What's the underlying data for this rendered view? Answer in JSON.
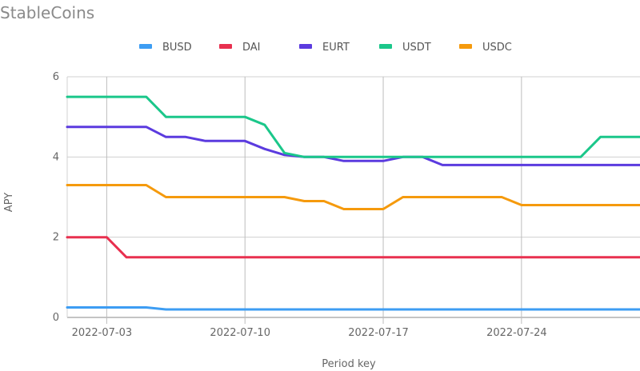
{
  "chart_data": {
    "type": "line",
    "title": "StableCoins",
    "xlabel": "Period key",
    "ylabel": "APY",
    "ylim": [
      0,
      6
    ],
    "yticks": [
      0,
      2,
      4,
      6
    ],
    "xlim": [
      0,
      29
    ],
    "xticks": [
      {
        "label": "2022-07-03",
        "index": 2
      },
      {
        "label": "2022-07-10",
        "index": 9
      },
      {
        "label": "2022-07-17",
        "index": 16
      },
      {
        "label": "2022-07-24",
        "index": 23
      }
    ],
    "grid": true,
    "legend_position": "top",
    "series": [
      {
        "name": "BUSD",
        "color": "#3d9df3",
        "values": [
          0.25,
          0.25,
          0.25,
          0.25,
          0.25,
          0.2,
          0.2,
          0.2,
          0.2,
          0.2,
          0.2,
          0.2,
          0.2,
          0.2,
          0.2,
          0.2,
          0.2,
          0.2,
          0.2,
          0.2,
          0.2,
          0.2,
          0.2,
          0.2,
          0.2,
          0.2,
          0.2,
          0.2,
          0.2,
          0.2
        ]
      },
      {
        "name": "DAI",
        "color": "#e8304f",
        "values": [
          2.0,
          2.0,
          2.0,
          1.5,
          1.5,
          1.5,
          1.5,
          1.5,
          1.5,
          1.5,
          1.5,
          1.5,
          1.5,
          1.5,
          1.5,
          1.5,
          1.5,
          1.5,
          1.5,
          1.5,
          1.5,
          1.5,
          1.5,
          1.5,
          1.5,
          1.5,
          1.5,
          1.5,
          1.5,
          1.5
        ]
      },
      {
        "name": "EURT",
        "color": "#5b3bdf",
        "values": [
          4.75,
          4.75,
          4.75,
          4.75,
          4.75,
          4.5,
          4.5,
          4.4,
          4.4,
          4.4,
          4.2,
          4.05,
          4.0,
          4.0,
          3.9,
          3.9,
          3.9,
          4.0,
          4.0,
          3.8,
          3.8,
          3.8,
          3.8,
          3.8,
          3.8,
          3.8,
          3.8,
          3.8,
          3.8,
          3.8
        ]
      },
      {
        "name": "USDT",
        "color": "#1bc78a",
        "values": [
          5.5,
          5.5,
          5.5,
          5.5,
          5.5,
          5.0,
          5.0,
          5.0,
          5.0,
          5.0,
          4.8,
          4.1,
          4.0,
          4.0,
          4.0,
          4.0,
          4.0,
          4.0,
          4.0,
          4.0,
          4.0,
          4.0,
          4.0,
          4.0,
          4.0,
          4.0,
          4.0,
          4.5,
          4.5,
          4.5
        ]
      },
      {
        "name": "USDC",
        "color": "#f59a0d",
        "values": [
          3.3,
          3.3,
          3.3,
          3.3,
          3.3,
          3.0,
          3.0,
          3.0,
          3.0,
          3.0,
          3.0,
          3.0,
          2.9,
          2.9,
          2.7,
          2.7,
          2.7,
          3.0,
          3.0,
          3.0,
          3.0,
          3.0,
          3.0,
          2.8,
          2.8,
          2.8,
          2.8,
          2.8,
          2.8,
          2.8
        ]
      }
    ]
  }
}
